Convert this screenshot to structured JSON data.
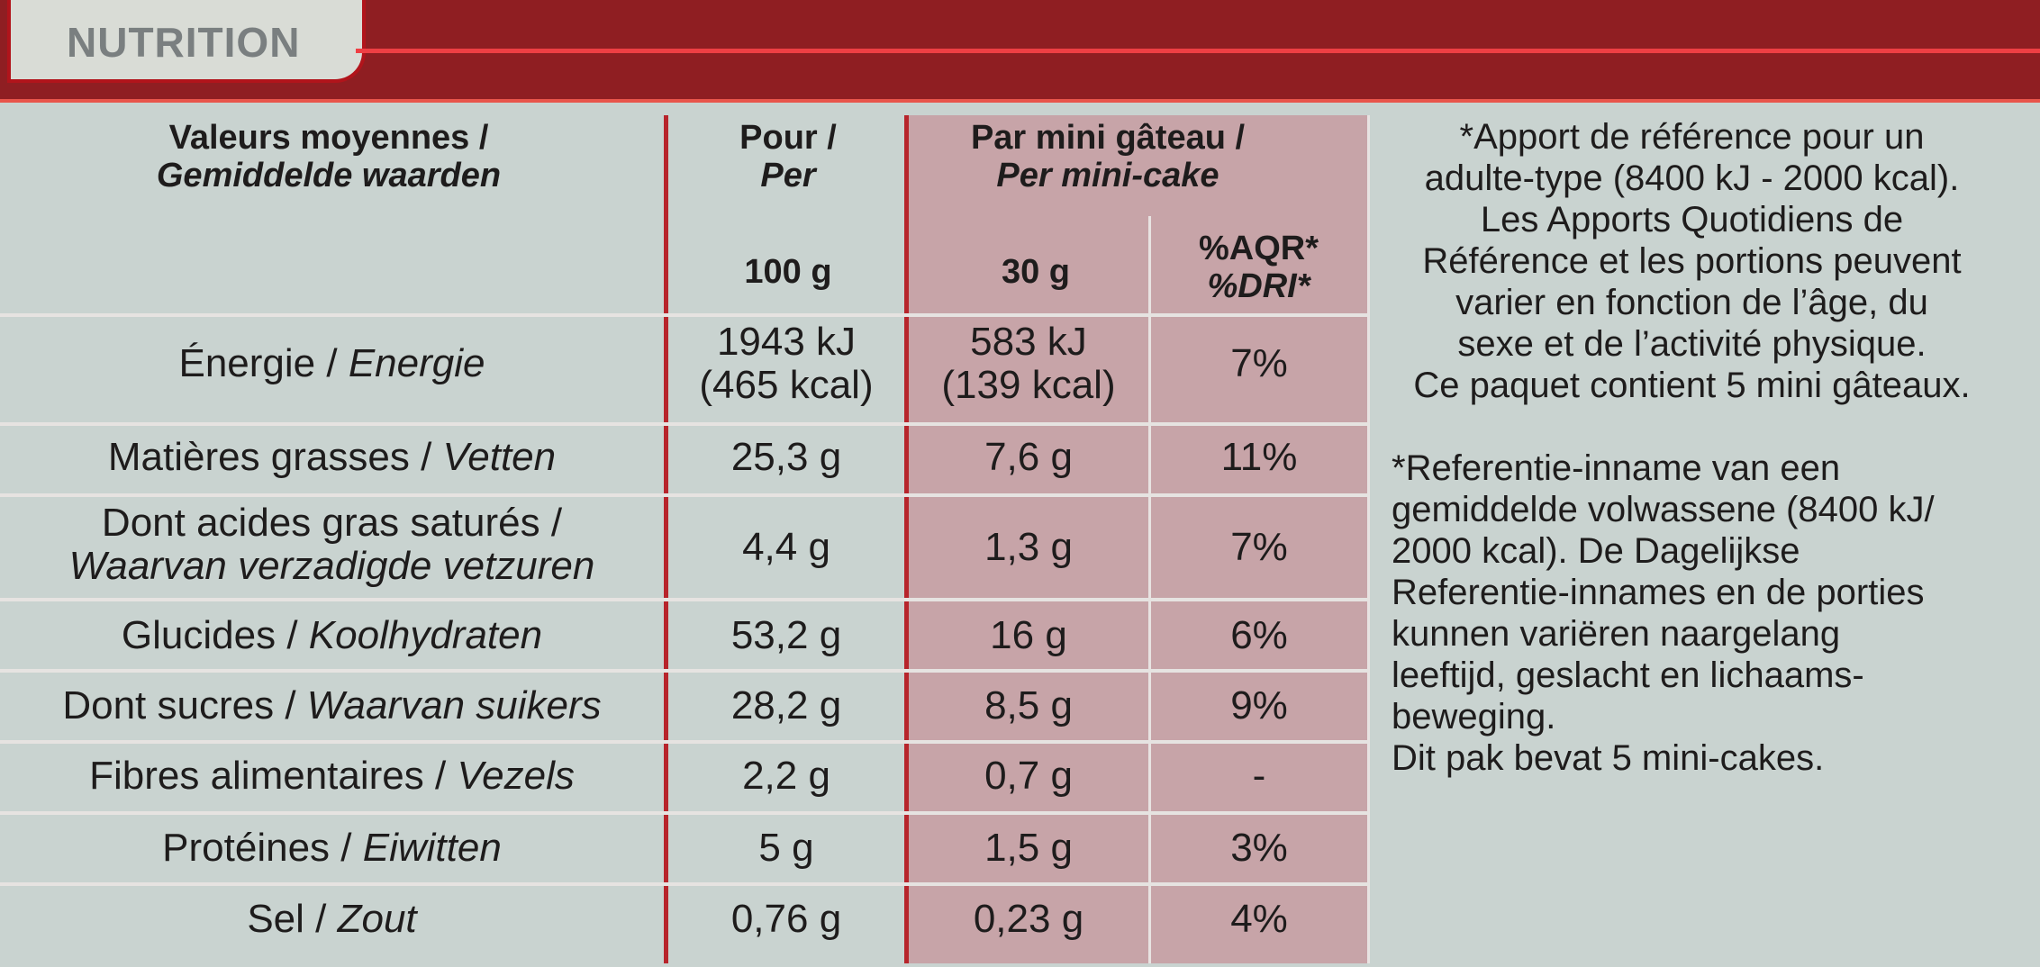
{
  "header": {
    "title": "NUTRITION"
  },
  "table": {
    "headers": {
      "col_label": {
        "fr": "Valeurs moyennes /",
        "nl": "Gemiddelde waarden"
      },
      "col_per": {
        "fr": "Pour /",
        "nl": "Per",
        "unit": "100 g"
      },
      "col_portion": {
        "fr": "Par mini gâteau /",
        "nl": "Per mini-cake",
        "unit": "30 g"
      },
      "col_ri": {
        "line1": "%AQR*",
        "line2": "%DRI*"
      }
    },
    "rows": [
      {
        "label_fr": "Énergie / ",
        "label_nl": "Energie",
        "per100_line1": "1943 kJ",
        "per100_line2": "(465 kcal)",
        "portion_line1": "583 kJ",
        "portion_line2": "(139 kcal)",
        "ri": "7%"
      },
      {
        "label_fr": "Matières grasses / ",
        "label_nl": "Vetten",
        "per100": "25,3 g",
        "portion": "7,6 g",
        "ri": "11%"
      },
      {
        "label_fr": "Dont acides gras saturés /",
        "label_nl": "Waarvan verzadigde vetzuren",
        "per100": "4,4 g",
        "portion": "1,3 g",
        "ri": "7%"
      },
      {
        "label_fr": "Glucides / ",
        "label_nl": "Koolhydraten",
        "per100": "53,2 g",
        "portion": "16 g",
        "ri": "6%"
      },
      {
        "label_fr": "Dont sucres / ",
        "label_nl": "Waarvan suikers",
        "per100": "28,2 g",
        "portion": "8,5 g",
        "ri": "9%"
      },
      {
        "label_fr": "Fibres alimentaires / ",
        "label_nl": "Vezels",
        "per100": "2,2 g",
        "portion": "0,7 g",
        "ri": "-"
      },
      {
        "label_fr": "Protéines / ",
        "label_nl": "Eiwitten",
        "per100": "5 g",
        "portion": "1,5 g",
        "ri": "3%"
      },
      {
        "label_fr": "Sel / ",
        "label_nl": "Zout",
        "per100": "0,76 g",
        "portion": "0,23 g",
        "ri": "4%"
      }
    ]
  },
  "notes": {
    "fr": [
      "*Apport de référence pour un",
      "adulte-type (8400 kJ - 2000 kcal).",
      "Les Apports Quotidiens de",
      "Référence et les portions peuvent",
      "varier en fonction de l’âge, du",
      "sexe et de l’activité physique.",
      "Ce paquet contient 5 mini gâteaux."
    ],
    "nl": [
      "*Referentie-inname van een",
      "gemiddelde volwassene (8400 kJ/",
      "2000 kcal). De Dagelijkse",
      "Referentie-innames en de porties",
      "kunnen variëren naargelang",
      "leeftijd, geslacht en lichaams-",
      "beweging.",
      "Dit pak bevat 5 mini-cakes."
    ]
  },
  "colors": {
    "brand_red": "#b1141b",
    "panel": "#c9d3d0",
    "shaded_column": "#c7a4a8"
  }
}
